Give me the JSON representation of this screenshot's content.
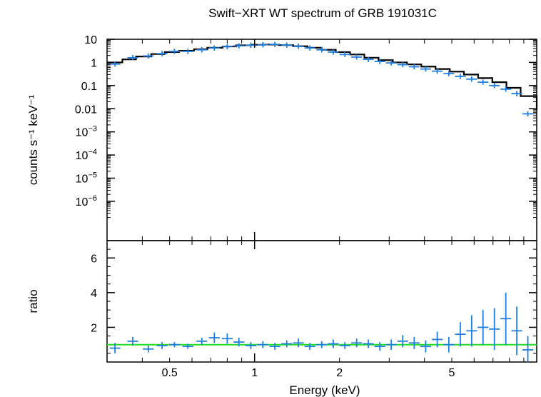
{
  "chart_data": [
    {
      "type": "scatter",
      "title": "Swift−XRT WT spectrum of GRB 191031C",
      "ylabel": "counts s⁻¹ keV⁻¹",
      "xlabel": "Energy (keV)",
      "x_scale": "log",
      "y_scale": "log",
      "xlim": [
        0.3,
        10
      ],
      "ylim": [
        2e-08,
        10
      ],
      "y_ticks": [
        {
          "value": 10,
          "label": "10"
        },
        {
          "value": 1,
          "label": "1"
        },
        {
          "value": 0.1,
          "label": "0.1"
        },
        {
          "value": 0.01,
          "label": "0.01"
        },
        {
          "value": 0.001,
          "base": "10",
          "exp": "−3"
        },
        {
          "value": 0.0001,
          "base": "10",
          "exp": "−4"
        },
        {
          "value": 1e-05,
          "base": "10",
          "exp": "−5"
        },
        {
          "value": 1e-06,
          "base": "10",
          "exp": "−6"
        }
      ],
      "series": [
        {
          "kind": "data",
          "color": "#1f7fe0",
          "x": [
            0.32,
            0.37,
            0.42,
            0.47,
            0.52,
            0.58,
            0.65,
            0.72,
            0.8,
            0.88,
            0.97,
            1.07,
            1.18,
            1.3,
            1.43,
            1.57,
            1.73,
            1.9,
            2.09,
            2.3,
            2.53,
            2.78,
            3.05,
            3.35,
            3.68,
            4.04,
            4.44,
            4.88,
            5.36,
            5.88,
            6.45,
            7.08,
            7.77,
            8.5,
            9.3
          ],
          "y": [
            0.85,
            1.6,
            1.9,
            2.4,
            3.0,
            3.0,
            3.5,
            4.2,
            4.8,
            5.2,
            5.5,
            5.8,
            6.0,
            5.6,
            5.0,
            4.2,
            3.5,
            2.8,
            2.2,
            1.7,
            1.35,
            1.1,
            0.95,
            0.8,
            0.65,
            0.52,
            0.42,
            0.33,
            0.25,
            0.19,
            0.14,
            0.1,
            0.07,
            0.045,
            0.006
          ]
        },
        {
          "kind": "model",
          "color": "#000000",
          "x": [
            0.3,
            0.34,
            0.38,
            0.43,
            0.48,
            0.54,
            0.61,
            0.68,
            0.77,
            0.86,
            0.97,
            1.09,
            1.22,
            1.37,
            1.54,
            1.73,
            1.94,
            2.18,
            2.45,
            2.75,
            3.09,
            3.47,
            3.9,
            4.38,
            4.92,
            5.52,
            6.2,
            6.96,
            7.81,
            8.77,
            10
          ],
          "y": [
            1.0,
            1.35,
            1.8,
            2.3,
            2.8,
            3.2,
            3.7,
            4.3,
            4.9,
            5.5,
            5.8,
            5.9,
            5.6,
            5.0,
            4.3,
            3.5,
            2.8,
            2.2,
            1.6,
            1.25,
            1.0,
            0.82,
            0.66,
            0.52,
            0.4,
            0.3,
            0.21,
            0.14,
            0.08,
            0.035,
            0.009
          ]
        }
      ]
    },
    {
      "type": "scatter",
      "ylabel": "ratio",
      "xlabel": "Energy (keV)",
      "x_scale": "log",
      "xlim": [
        0.3,
        10
      ],
      "ylim": [
        0,
        7
      ],
      "y_ticks": [
        2,
        4,
        6
      ],
      "x_tick_labels": [
        {
          "value": 0.5,
          "label": "0.5"
        },
        {
          "value": 1,
          "label": "1"
        },
        {
          "value": 2,
          "label": "2"
        },
        {
          "value": 5,
          "label": "5"
        }
      ],
      "reference_line": {
        "y": 1,
        "color": "#22dd22"
      },
      "series": [
        {
          "kind": "data",
          "color": "#1f7fe0",
          "x": [
            0.32,
            0.37,
            0.42,
            0.47,
            0.52,
            0.58,
            0.65,
            0.72,
            0.8,
            0.88,
            0.97,
            1.07,
            1.18,
            1.3,
            1.43,
            1.57,
            1.73,
            1.9,
            2.09,
            2.3,
            2.53,
            2.78,
            3.05,
            3.35,
            3.68,
            4.04,
            4.44,
            4.88,
            5.36,
            5.88,
            6.45,
            7.08,
            7.77,
            8.5,
            9.3
          ],
          "y": [
            0.8,
            1.2,
            0.75,
            0.95,
            1.0,
            0.9,
            1.2,
            1.4,
            1.35,
            1.15,
            0.95,
            1.0,
            0.9,
            1.05,
            1.1,
            0.9,
            1.0,
            1.05,
            0.95,
            1.1,
            1.05,
            0.9,
            1.0,
            1.2,
            1.1,
            0.9,
            1.3,
            1.0,
            1.6,
            1.8,
            2.0,
            1.9,
            2.5,
            1.8,
            0.7
          ],
          "yerr": [
            0.3,
            0.25,
            0.2,
            0.2,
            0.15,
            0.15,
            0.2,
            0.3,
            0.3,
            0.25,
            0.2,
            0.2,
            0.2,
            0.2,
            0.25,
            0.2,
            0.2,
            0.25,
            0.2,
            0.25,
            0.25,
            0.25,
            0.3,
            0.35,
            0.35,
            0.35,
            0.45,
            0.45,
            0.7,
            0.9,
            1.0,
            1.2,
            1.5,
            1.4,
            0.8
          ]
        }
      ]
    }
  ]
}
